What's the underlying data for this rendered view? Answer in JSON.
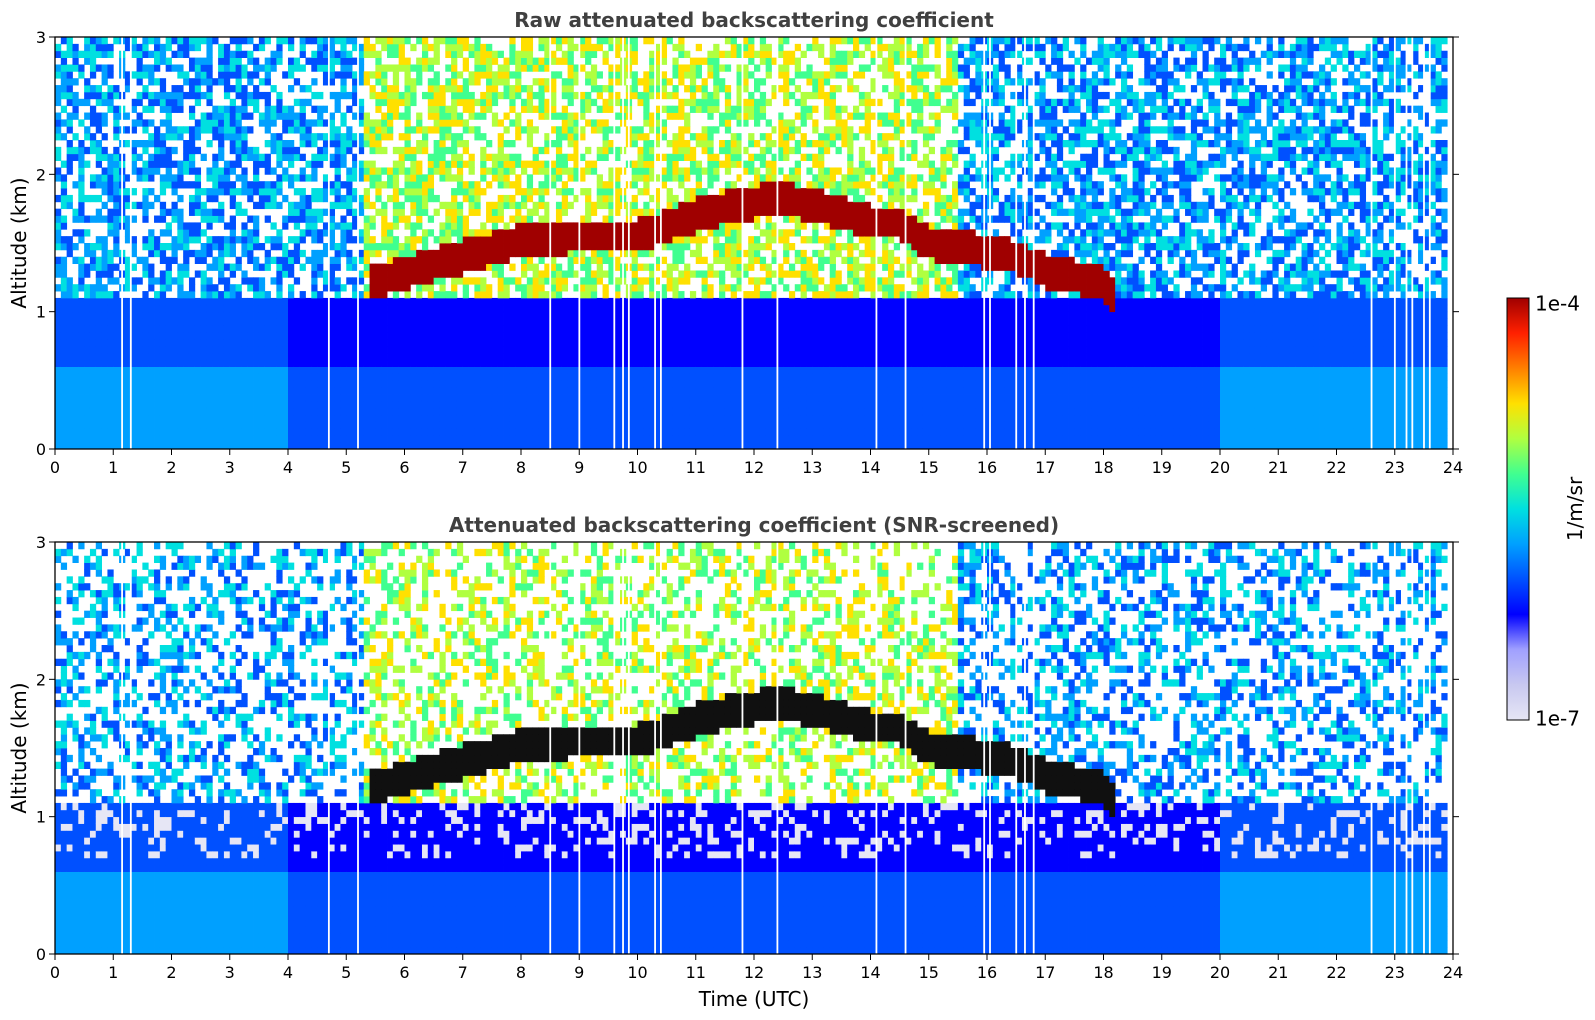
{
  "chart_data": [
    {
      "type": "heatmap",
      "title": "Raw attenuated backscattering coefficient",
      "ylabel": "Altitude (km)",
      "xlim": [
        0,
        24
      ],
      "ylim": [
        0,
        3
      ],
      "x_ticks": [
        "0",
        "1",
        "2",
        "3",
        "4",
        "5",
        "6",
        "7",
        "8",
        "9",
        "10",
        "11",
        "12",
        "13",
        "14",
        "15",
        "16",
        "17",
        "18",
        "19",
        "20",
        "21",
        "22",
        "23",
        "24"
      ],
      "y_ticks": [
        "0",
        "1",
        "2",
        "3"
      ],
      "cloud_layer": {
        "x": [
          5.4,
          6.0,
          7.0,
          8.0,
          9.0,
          10.0,
          11.0,
          12.0,
          12.5,
          13.0,
          13.5,
          14.0,
          14.5,
          15.0,
          15.5,
          16.5,
          17.0,
          18.0,
          18.2
        ],
        "y": [
          1.2,
          1.28,
          1.4,
          1.52,
          1.55,
          1.55,
          1.7,
          1.8,
          1.82,
          1.78,
          1.72,
          1.65,
          1.65,
          1.5,
          1.48,
          1.4,
          1.3,
          1.2,
          1.12
        ]
      },
      "gaps": [
        1.15,
        1.3,
        4.7,
        5.2,
        8.5,
        9.0,
        9.6,
        9.75,
        9.85,
        10.3,
        10.4,
        11.8,
        12.4,
        14.1,
        14.6,
        15.95,
        16.05,
        16.5,
        16.65,
        16.8,
        22.6,
        23.0,
        23.2,
        23.3,
        23.5,
        23.6
      ]
    },
    {
      "type": "heatmap",
      "title": "Attenuated backscattering coefficient (SNR-screened)",
      "xlabel": "Time (UTC)",
      "ylabel": "Altitude (km)",
      "xlim": [
        0,
        24
      ],
      "ylim": [
        0,
        3
      ],
      "x_ticks": [
        "0",
        "1",
        "2",
        "3",
        "4",
        "5",
        "6",
        "7",
        "8",
        "9",
        "10",
        "11",
        "12",
        "13",
        "14",
        "15",
        "16",
        "17",
        "18",
        "19",
        "20",
        "21",
        "22",
        "23",
        "24"
      ],
      "y_ticks": [
        "0",
        "1",
        "2",
        "3"
      ],
      "cloud_layer": {
        "x": [
          5.4,
          6.0,
          7.0,
          8.0,
          9.0,
          10.0,
          11.0,
          12.0,
          12.5,
          13.0,
          13.5,
          14.0,
          14.5,
          15.0,
          15.5,
          16.5,
          17.0,
          18.0,
          18.2
        ],
        "y": [
          1.2,
          1.28,
          1.4,
          1.52,
          1.55,
          1.55,
          1.7,
          1.8,
          1.82,
          1.78,
          1.72,
          1.65,
          1.65,
          1.5,
          1.48,
          1.4,
          1.3,
          1.2,
          1.12
        ]
      },
      "gaps": [
        1.15,
        1.3,
        4.7,
        5.2,
        8.5,
        9.0,
        9.6,
        9.75,
        9.85,
        10.3,
        10.4,
        11.8,
        12.4,
        14.1,
        14.6,
        15.95,
        16.05,
        16.5,
        16.65,
        16.8,
        22.6,
        23.0,
        23.2,
        23.3,
        23.5,
        23.6
      ]
    }
  ],
  "colorbar": {
    "label": "1/m/sr",
    "max_label": "1e-4",
    "min_label": "1e-7",
    "scale": "log",
    "range": [
      1e-07,
      0.0001
    ],
    "colormap": "jet",
    "colors": [
      "#e6e6f5",
      "#c8c8f0",
      "#a0a0ff",
      "#0000ff",
      "#0050ff",
      "#00a0ff",
      "#00e0e0",
      "#40ff90",
      "#b0ff40",
      "#ffe000",
      "#ff8000",
      "#ff2000",
      "#a00000"
    ]
  }
}
